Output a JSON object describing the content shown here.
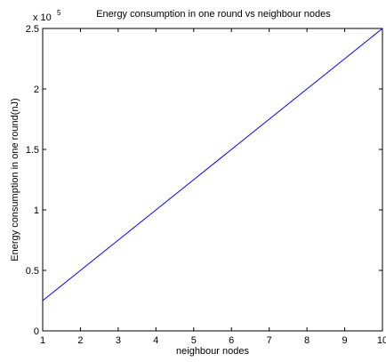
{
  "chart_data": {
    "type": "line",
    "title": "Energy consumption in one round vs neighbour nodes",
    "xlabel": "neighbour nodes",
    "ylabel": "Energy consumption in one round(nJ)",
    "xlim": [
      1,
      10
    ],
    "ylim": [
      0,
      2.5
    ],
    "xticks": [
      "1",
      "2",
      "3",
      "4",
      "5",
      "6",
      "7",
      "8",
      "9",
      "10"
    ],
    "yticks": [
      "0",
      "0.5",
      "1",
      "1.5",
      "2",
      "2.5"
    ],
    "y_multiplier": {
      "base": "x 10",
      "exponent": "5"
    },
    "grid": false,
    "series": [
      {
        "color": "#0000ff",
        "x": [
          1,
          2,
          3,
          4,
          5,
          6,
          7,
          8,
          9,
          10
        ],
        "y": [
          0.25,
          0.5,
          0.75,
          1.0,
          1.25,
          1.5,
          1.75,
          2.0,
          2.25,
          2.5
        ]
      }
    ]
  }
}
